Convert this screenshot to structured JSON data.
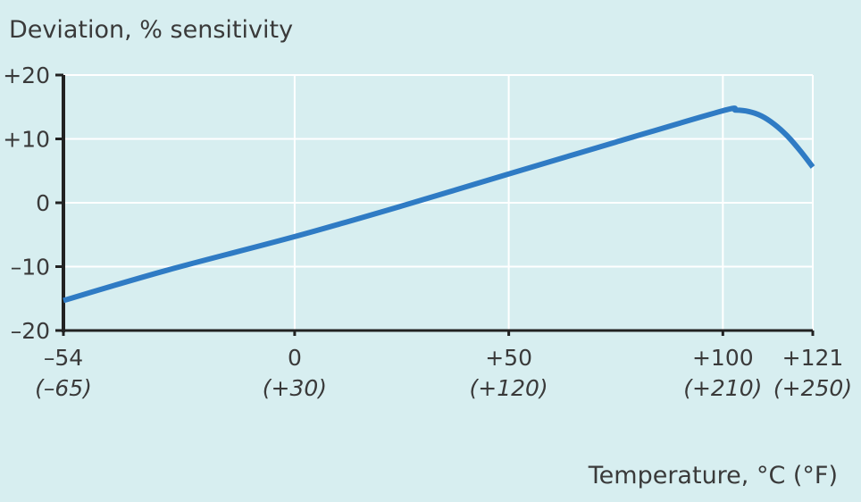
{
  "colors": {
    "background": "#d7eef0",
    "axis": "#222222",
    "grid": "#ffffff",
    "series": "#2f7bc4",
    "text": "#3a3a3a"
  },
  "chart_data": {
    "type": "line",
    "title": "",
    "ylabel": "Deviation, % sensitivity",
    "xlabel": "Temperature, °C (°F)",
    "grid": true,
    "legend": "none",
    "xlim": [
      -54,
      121
    ],
    "ylim": [
      -20,
      20
    ],
    "x_ticks": [
      {
        "value": -54,
        "label": "–54",
        "sublabel": "(–65)"
      },
      {
        "value": 0,
        "label": "0",
        "sublabel": "(+30)"
      },
      {
        "value": 50,
        "label": "+50",
        "sublabel": "(+120)"
      },
      {
        "value": 100,
        "label": "+100",
        "sublabel": "(+210)"
      },
      {
        "value": 121,
        "label": "+121",
        "sublabel": "(+250)"
      }
    ],
    "y_ticks": [
      {
        "value": 20,
        "label": "+20"
      },
      {
        "value": 10,
        "label": "+10"
      },
      {
        "value": 0,
        "label": "0"
      },
      {
        "value": -10,
        "label": "–10"
      },
      {
        "value": -20,
        "label": "–20"
      }
    ],
    "series": [
      {
        "x": [
          -54,
          -30,
          0,
          25,
          50,
          75,
          100,
          103,
          106,
          109,
          112,
          115,
          118,
          121
        ],
        "y": [
          -15.3,
          -10.6,
          -5.3,
          -0.5,
          4.5,
          9.5,
          14.4,
          14.5,
          14.3,
          13.6,
          12.3,
          10.5,
          8.2,
          5.6
        ]
      }
    ]
  }
}
